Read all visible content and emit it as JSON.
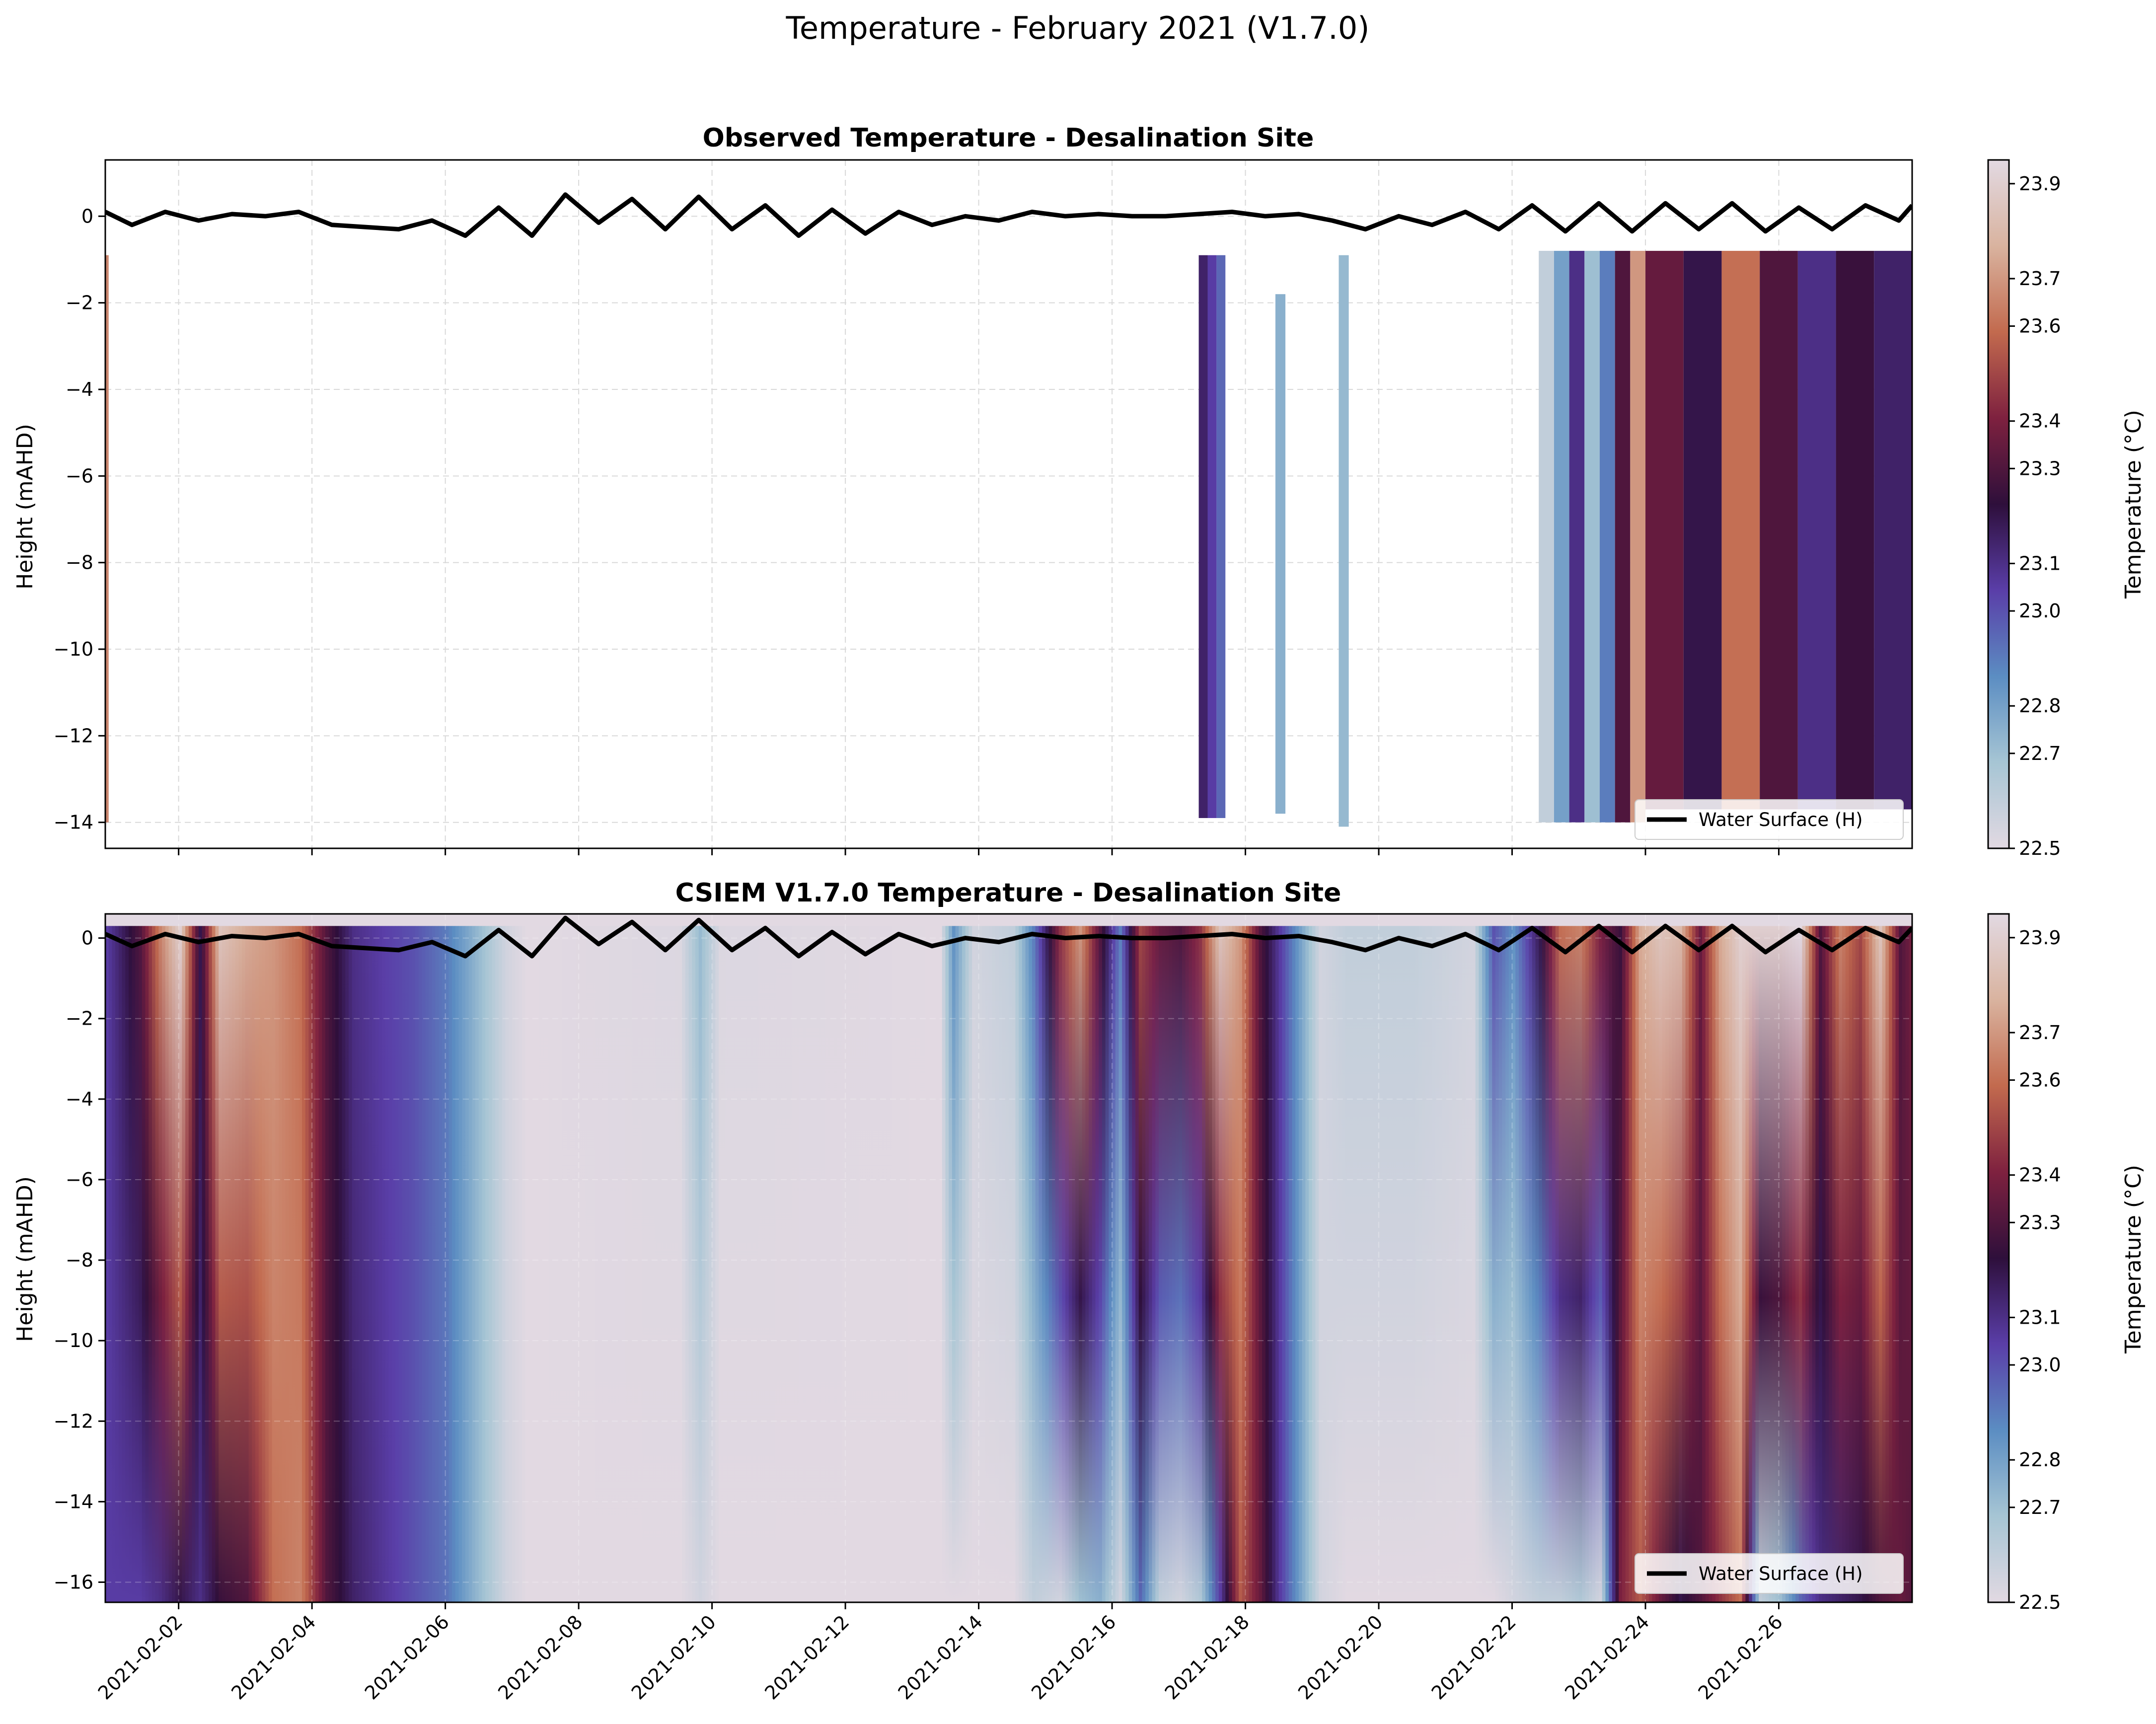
{
  "figure_title": "Temperature - February 2021 (V1.7.0)",
  "colors": {
    "colormap": [
      "#e2d9e2",
      "#a6c5d4",
      "#5b8dc2",
      "#5a3ea8",
      "#2e0f3b",
      "#7e213f",
      "#c26a4e",
      "#d9b39f",
      "#e2d9e2"
    ],
    "water_line": "#000000",
    "grid": "#d9d9d9"
  },
  "chart_data": [
    {
      "type": "heatmap",
      "name": "observed",
      "title": "Observed Temperature - Desalination Site",
      "xlabel": "",
      "ylabel": "Height (mAHD)",
      "xlim": [
        0.9,
        28.0
      ],
      "ylim": [
        -14.6,
        1.3
      ],
      "yticks": [
        0,
        -2,
        -4,
        -6,
        -8,
        -10,
        -12,
        -14
      ],
      "grid": true,
      "legend": {
        "label": "Water Surface (H)",
        "placement": "lower-right"
      },
      "colorbar": {
        "label": "Temperature (°C)",
        "range": [
          22.5,
          23.95
        ],
        "ticks": [
          "23.9",
          "23.7",
          "23.6",
          "23.4",
          "23.3",
          "23.1",
          "23.0",
          "22.8",
          "22.7",
          "22.5"
        ]
      },
      "blocks": [
        {
          "x0": 0.9,
          "x1": 0.95,
          "top": -0.9,
          "bottom": -14.0,
          "temps": [
            23.65,
            23.65
          ]
        },
        {
          "x0": 17.3,
          "x1": 17.7,
          "top": -0.9,
          "bottom": -13.9,
          "temps": [
            23.15,
            23.05,
            22.95
          ]
        },
        {
          "x0": 18.45,
          "x1": 18.6,
          "top": -1.8,
          "bottom": -13.8,
          "temps": [
            22.75
          ]
        },
        {
          "x0": 19.4,
          "x1": 19.55,
          "top": -0.9,
          "bottom": -14.1,
          "temps": [
            22.72
          ]
        },
        {
          "x0": 22.4,
          "x1": 24.0,
          "top": -0.8,
          "bottom": -14.0,
          "temps": [
            22.6,
            22.8,
            23.1,
            22.7,
            22.9,
            23.3,
            23.7
          ]
        },
        {
          "x0": 24.0,
          "x1": 28.0,
          "top": -0.8,
          "bottom": -13.7,
          "temps": [
            23.35,
            23.2,
            23.6,
            23.3,
            23.1,
            23.25,
            23.15
          ]
        }
      ],
      "water_surface": {
        "t": [
          0.9,
          1.3,
          1.8,
          2.3,
          2.8,
          3.3,
          3.8,
          4.3,
          4.8,
          5.3,
          5.8,
          6.3,
          6.8,
          7.3,
          7.8,
          8.3,
          8.8,
          9.3,
          9.8,
          10.3,
          10.8,
          11.3,
          11.8,
          12.3,
          12.8,
          13.3,
          13.8,
          14.3,
          14.8,
          15.3,
          15.8,
          16.3,
          16.8,
          17.3,
          17.8,
          18.3,
          18.8,
          19.3,
          19.8,
          20.3,
          20.8,
          21.3,
          21.8,
          22.3,
          22.8,
          23.3,
          23.8,
          24.3,
          24.8,
          25.3,
          25.8,
          26.3,
          26.8,
          27.3,
          27.8,
          28.0
        ],
        "h": [
          0.1,
          -0.2,
          0.1,
          -0.1,
          0.05,
          0.0,
          0.1,
          -0.2,
          -0.25,
          -0.3,
          -0.1,
          -0.45,
          0.2,
          -0.45,
          0.5,
          -0.15,
          0.4,
          -0.3,
          0.45,
          -0.3,
          0.25,
          -0.45,
          0.15,
          -0.4,
          0.1,
          -0.2,
          0.0,
          -0.1,
          0.1,
          0.0,
          0.05,
          0.0,
          0.0,
          0.05,
          0.1,
          0.0,
          0.05,
          -0.1,
          -0.3,
          0.0,
          -0.2,
          0.1,
          -0.3,
          0.25,
          -0.35,
          0.3,
          -0.35,
          0.3,
          -0.3,
          0.3,
          -0.35,
          0.2,
          -0.3,
          0.25,
          -0.1,
          0.25
        ]
      }
    },
    {
      "type": "heatmap",
      "name": "model",
      "title": "CSIEM V1.7.0 Temperature - Desalination Site",
      "xlabel": "",
      "ylabel": "Height (mAHD)",
      "xlim": [
        0.9,
        28.0
      ],
      "ylim": [
        -16.5,
        0.6
      ],
      "yticks": [
        0,
        -2,
        -4,
        -6,
        -8,
        -10,
        -12,
        -14,
        -16
      ],
      "grid": true,
      "xticks": [
        "2021-02-02",
        "2021-02-04",
        "2021-02-06",
        "2021-02-08",
        "2021-02-10",
        "2021-02-12",
        "2021-02-14",
        "2021-02-16",
        "2021-02-18",
        "2021-02-20",
        "2021-02-22",
        "2021-02-24",
        "2021-02-26"
      ],
      "xtick_values": [
        2,
        4,
        6,
        8,
        10,
        12,
        14,
        16,
        18,
        20,
        22,
        24,
        26
      ],
      "legend": {
        "label": "Water Surface (H)",
        "placement": "lower-right"
      },
      "colorbar": {
        "label": "Temperature (°C)",
        "range": [
          22.5,
          23.95
        ],
        "ticks": [
          "23.9",
          "23.7",
          "23.6",
          "23.4",
          "23.3",
          "23.1",
          "23.0",
          "22.8",
          "22.7",
          "22.5"
        ]
      },
      "columns": [
        {
          "t": 0.9,
          "top": 23.05,
          "bottom": 23.05
        },
        {
          "t": 1.4,
          "top": 23.3,
          "bottom": 23.05
        },
        {
          "t": 1.7,
          "top": 23.65,
          "bottom": 23.1
        },
        {
          "t": 2.0,
          "top": 23.9,
          "bottom": 23.2
        },
        {
          "t": 2.3,
          "top": 23.2,
          "bottom": 23.1
        },
        {
          "t": 2.6,
          "top": 23.85,
          "bottom": 23.25
        },
        {
          "t": 3.0,
          "top": 23.75,
          "bottom": 23.3
        },
        {
          "t": 3.4,
          "top": 23.7,
          "bottom": 23.6
        },
        {
          "t": 3.8,
          "top": 23.6,
          "bottom": 23.65
        },
        {
          "t": 4.2,
          "top": 23.3,
          "bottom": 23.3
        },
        {
          "t": 4.6,
          "top": 23.1,
          "bottom": 23.15
        },
        {
          "t": 5.0,
          "top": 23.05,
          "bottom": 23.08
        },
        {
          "t": 5.5,
          "top": 23.0,
          "bottom": 23.0
        },
        {
          "t": 6.0,
          "top": 22.9,
          "bottom": 22.92
        },
        {
          "t": 6.4,
          "top": 22.75,
          "bottom": 22.75
        },
        {
          "t": 6.9,
          "top": 22.55,
          "bottom": 22.55
        },
        {
          "t": 7.2,
          "top": 22.5,
          "bottom": 22.5
        },
        {
          "t": 9.5,
          "top": 22.52,
          "bottom": 22.5
        },
        {
          "t": 9.8,
          "top": 22.72,
          "bottom": 22.55
        },
        {
          "t": 10.1,
          "top": 22.52,
          "bottom": 22.5
        },
        {
          "t": 13.4,
          "top": 22.5,
          "bottom": 22.5
        },
        {
          "t": 13.6,
          "top": 22.85,
          "bottom": 22.5
        },
        {
          "t": 13.9,
          "top": 22.55,
          "bottom": 22.5
        },
        {
          "t": 14.5,
          "top": 22.6,
          "bottom": 22.5
        },
        {
          "t": 14.8,
          "top": 22.9,
          "bottom": 22.6
        },
        {
          "t": 15.2,
          "top": 23.45,
          "bottom": 22.55
        },
        {
          "t": 15.5,
          "top": 23.7,
          "bottom": 22.7
        },
        {
          "t": 15.8,
          "top": 23.3,
          "bottom": 22.75
        },
        {
          "t": 16.1,
          "top": 22.9,
          "bottom": 22.55
        },
        {
          "t": 16.4,
          "top": 23.5,
          "bottom": 22.95
        },
        {
          "t": 16.7,
          "top": 23.35,
          "bottom": 22.6
        },
        {
          "t": 17.0,
          "top": 23.3,
          "bottom": 22.55
        },
        {
          "t": 17.3,
          "top": 23.45,
          "bottom": 22.65
        },
        {
          "t": 17.6,
          "top": 23.85,
          "bottom": 23.05
        },
        {
          "t": 17.9,
          "top": 23.7,
          "bottom": 23.55
        },
        {
          "t": 18.2,
          "top": 23.3,
          "bottom": 23.35
        },
        {
          "t": 18.5,
          "top": 23.05,
          "bottom": 23.05
        },
        {
          "t": 18.8,
          "top": 22.8,
          "bottom": 22.8
        },
        {
          "t": 19.1,
          "top": 22.55,
          "bottom": 22.55
        },
        {
          "t": 19.5,
          "top": 22.6,
          "bottom": 22.5
        },
        {
          "t": 20.5,
          "top": 22.6,
          "bottom": 22.5
        },
        {
          "t": 21.4,
          "top": 22.55,
          "bottom": 22.5
        },
        {
          "t": 21.7,
          "top": 23.0,
          "bottom": 22.5
        },
        {
          "t": 22.0,
          "top": 22.85,
          "bottom": 22.55
        },
        {
          "t": 22.4,
          "top": 23.2,
          "bottom": 22.6
        },
        {
          "t": 22.7,
          "top": 23.6,
          "bottom": 22.6
        },
        {
          "t": 23.0,
          "top": 23.65,
          "bottom": 22.65
        },
        {
          "t": 23.3,
          "top": 23.4,
          "bottom": 22.55
        },
        {
          "t": 23.6,
          "top": 23.25,
          "bottom": 23.4
        },
        {
          "t": 23.9,
          "top": 23.75,
          "bottom": 23.55
        },
        {
          "t": 24.2,
          "top": 23.85,
          "bottom": 23.35
        },
        {
          "t": 24.5,
          "top": 23.8,
          "bottom": 23.2
        },
        {
          "t": 24.8,
          "top": 23.35,
          "bottom": 23.3
        },
        {
          "t": 25.1,
          "top": 23.75,
          "bottom": 23.45
        },
        {
          "t": 25.4,
          "top": 23.9,
          "bottom": 23.6
        },
        {
          "t": 25.7,
          "top": 23.9,
          "bottom": 22.6
        },
        {
          "t": 26.0,
          "top": 23.9,
          "bottom": 22.7
        },
        {
          "t": 26.3,
          "top": 23.95,
          "bottom": 22.95
        },
        {
          "t": 26.6,
          "top": 23.3,
          "bottom": 23.1
        },
        {
          "t": 26.9,
          "top": 23.65,
          "bottom": 23.15
        },
        {
          "t": 27.2,
          "top": 23.5,
          "bottom": 23.2
        },
        {
          "t": 27.5,
          "top": 23.85,
          "bottom": 23.3
        },
        {
          "t": 27.8,
          "top": 23.3,
          "bottom": 23.35
        },
        {
          "t": 28.0,
          "top": 23.4,
          "bottom": 23.3
        }
      ],
      "water_surface": {
        "t": [
          0.9,
          1.3,
          1.8,
          2.3,
          2.8,
          3.3,
          3.8,
          4.3,
          4.8,
          5.3,
          5.8,
          6.3,
          6.8,
          7.3,
          7.8,
          8.3,
          8.8,
          9.3,
          9.8,
          10.3,
          10.8,
          11.3,
          11.8,
          12.3,
          12.8,
          13.3,
          13.8,
          14.3,
          14.8,
          15.3,
          15.8,
          16.3,
          16.8,
          17.3,
          17.8,
          18.3,
          18.8,
          19.3,
          19.8,
          20.3,
          20.8,
          21.3,
          21.8,
          22.3,
          22.8,
          23.3,
          23.8,
          24.3,
          24.8,
          25.3,
          25.8,
          26.3,
          26.8,
          27.3,
          27.8,
          28.0
        ],
        "h": [
          0.1,
          -0.2,
          0.1,
          -0.1,
          0.05,
          0.0,
          0.1,
          -0.2,
          -0.25,
          -0.3,
          -0.1,
          -0.45,
          0.2,
          -0.45,
          0.5,
          -0.15,
          0.4,
          -0.3,
          0.45,
          -0.3,
          0.25,
          -0.45,
          0.15,
          -0.4,
          0.1,
          -0.2,
          0.0,
          -0.1,
          0.1,
          0.0,
          0.05,
          0.0,
          0.0,
          0.05,
          0.1,
          0.0,
          0.05,
          -0.1,
          -0.3,
          0.0,
          -0.2,
          0.1,
          -0.3,
          0.25,
          -0.35,
          0.3,
          -0.35,
          0.3,
          -0.3,
          0.3,
          -0.35,
          0.2,
          -0.3,
          0.25,
          -0.1,
          0.25
        ]
      }
    }
  ]
}
